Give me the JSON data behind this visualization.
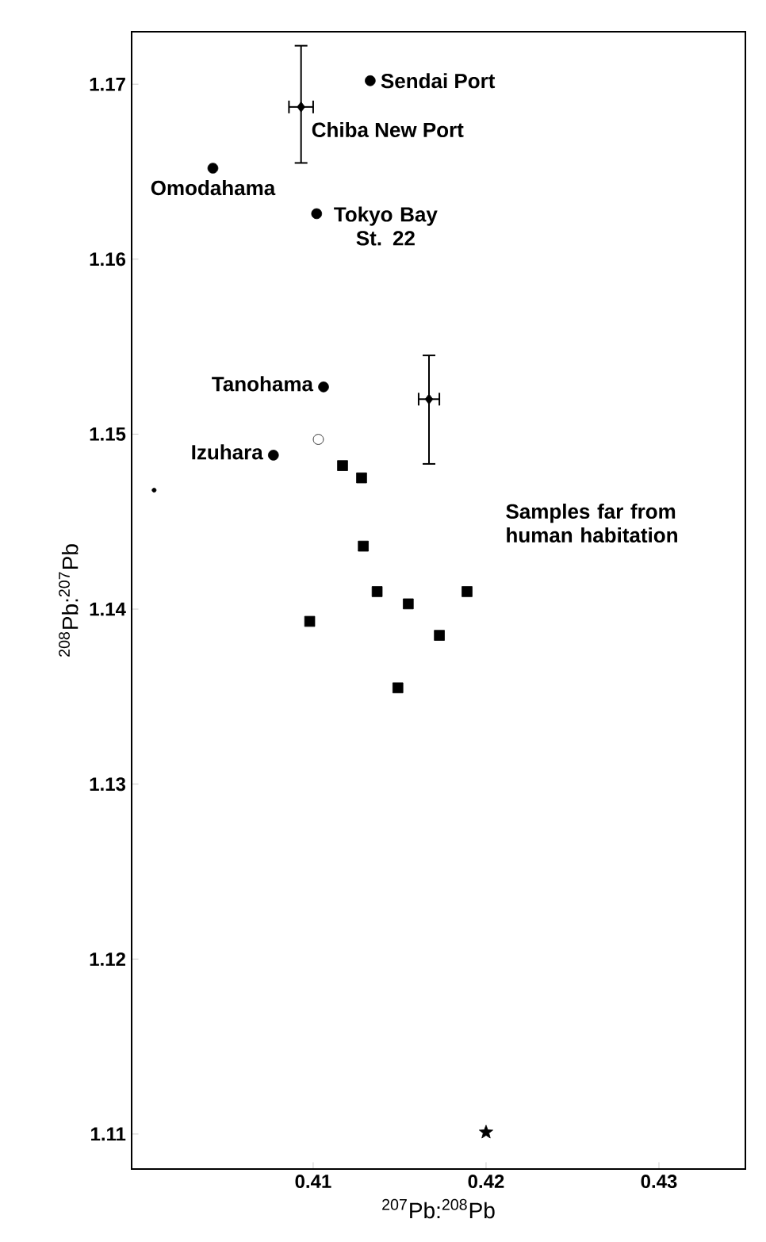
{
  "chart_data": {
    "type": "scatter",
    "xlabel": "$^{207}$Pb:$^{208}$Pb",
    "ylabel": "$^{208}$Pb:$^{207}$Pb",
    "xlim": [
      0.3995,
      0.435
    ],
    "ylim": [
      1.108,
      1.173
    ],
    "xticks": [
      0.41,
      0.42,
      0.43
    ],
    "yticks": [
      1.11,
      1.12,
      1.13,
      1.14,
      1.15,
      1.16,
      1.17
    ],
    "series": [
      {
        "color": "#000000",
        "marker": "circle",
        "x": [
          0.4133,
          0.4042,
          0.4102,
          0.4106,
          0.4077
        ],
        "values": [
          1.1702,
          1.1652,
          1.1626,
          1.1527,
          1.1488
        ]
      },
      {
        "color": "#ffffff",
        "marker": "circle",
        "x": [
          0.4103
        ],
        "values": [
          1.1497
        ]
      },
      {
        "color": "#000000",
        "marker": "circle",
        "x": [
          0.4008
        ],
        "values": [
          1.1468
        ]
      },
      {
        "color": "#000000",
        "marker": "diamond",
        "x": [
          0.4093,
          0.4167
        ],
        "values": [
          1.1687,
          1.152
        ],
        "errors": [
          [
            1.1655,
            1.1722
          ],
          [
            1.1483,
            1.1545
          ]
        ],
        "xerrors": [
          [
            0.4086,
            0.41
          ],
          [
            0.4161,
            0.4173
          ]
        ]
      },
      {
        "color": "#000000",
        "marker": "square",
        "x": [
          0.4117,
          0.4128,
          0.4129,
          0.4137,
          0.4155,
          0.4189,
          0.4098,
          0.4173,
          0.4149
        ],
        "values": [
          1.1482,
          1.1475,
          1.1436,
          1.141,
          1.1403,
          1.141,
          1.1393,
          1.1385,
          1.1355
        ]
      },
      {
        "color": "#000000",
        "marker": "star",
        "x": [
          0.42
        ],
        "values": [
          1.1101
        ]
      }
    ],
    "annotations": [
      {
        "text": "Sendai  Port",
        "x": 0.4133,
        "y": 1.1702
      },
      {
        "text": "Chiba New Port",
        "x": 0.4093,
        "y": 1.1687
      },
      {
        "text": "Omodahama",
        "x": 0.4042,
        "y": 1.1652
      },
      {
        "text": "Tokyo Bay St. 22",
        "x": 0.4102,
        "y": 1.1626
      },
      {
        "text": "Tanohama",
        "x": 0.4106,
        "y": 1.1527
      },
      {
        "text": "Izuhara",
        "x": 0.4077,
        "y": 1.1488
      },
      "Samples far from human habitation"
    ]
  }
}
